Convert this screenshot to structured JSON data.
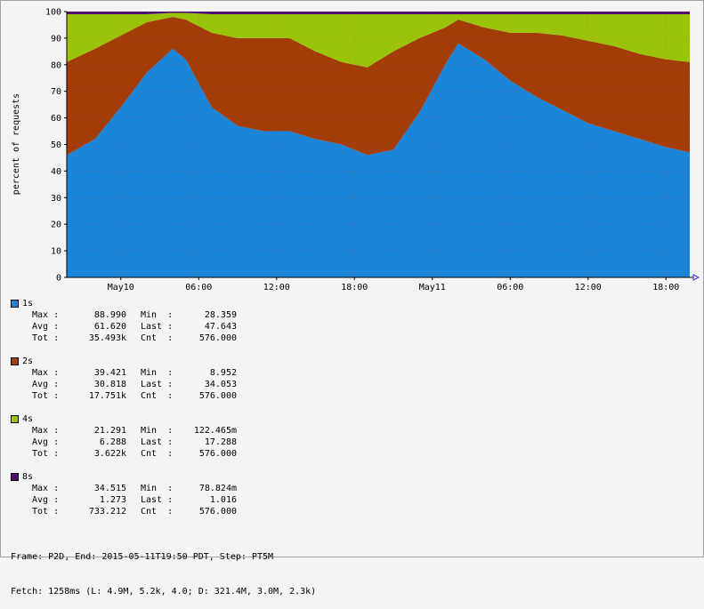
{
  "chart_data": {
    "type": "area",
    "stacked": true,
    "ylabel": "percent of requests",
    "ylim": [
      0,
      100
    ],
    "yticks": [
      0,
      10,
      20,
      30,
      40,
      50,
      60,
      70,
      80,
      90,
      100
    ],
    "xlim": [
      "2015-05-09T19:50",
      "2015-05-11T19:50"
    ],
    "xticks": [
      {
        "t": "2015-05-10T00:00",
        "label": "May10"
      },
      {
        "t": "2015-05-10T06:00",
        "label": "06:00"
      },
      {
        "t": "2015-05-10T12:00",
        "label": "12:00"
      },
      {
        "t": "2015-05-10T18:00",
        "label": "18:00"
      },
      {
        "t": "2015-05-11T00:00",
        "label": "May11"
      },
      {
        "t": "2015-05-11T06:00",
        "label": "06:00"
      },
      {
        "t": "2015-05-11T12:00",
        "label": "12:00"
      },
      {
        "t": "2015-05-11T18:00",
        "label": "18:00"
      }
    ],
    "grid": true,
    "x": [
      "2015-05-09T19:50",
      "2015-05-09T22:00",
      "2015-05-10T00:00",
      "2015-05-10T02:00",
      "2015-05-10T04:00",
      "2015-05-10T05:00",
      "2015-05-10T07:00",
      "2015-05-10T09:00",
      "2015-05-10T11:00",
      "2015-05-10T13:00",
      "2015-05-10T15:00",
      "2015-05-10T17:00",
      "2015-05-10T19:00",
      "2015-05-10T21:00",
      "2015-05-10T23:00",
      "2015-05-11T01:00",
      "2015-05-11T02:00",
      "2015-05-11T04:00",
      "2015-05-11T06:00",
      "2015-05-11T08:00",
      "2015-05-11T10:00",
      "2015-05-11T12:00",
      "2015-05-11T14:00",
      "2015-05-11T16:00",
      "2015-05-11T18:00",
      "2015-05-11T19:50"
    ],
    "series": [
      {
        "name": "1s",
        "color": "#1a84d8",
        "values": [
          46,
          52,
          64,
          77,
          86,
          82,
          64,
          57,
          55,
          55,
          52,
          50,
          46,
          48,
          62,
          80,
          88,
          82,
          74,
          68,
          63,
          58,
          55,
          52,
          49,
          47
        ]
      },
      {
        "name": "2s",
        "color": "#a23d08",
        "values": [
          35,
          34,
          27,
          19,
          12,
          15,
          28,
          33,
          35,
          35,
          33,
          31,
          33,
          37,
          28,
          14,
          9,
          12,
          18,
          24,
          28,
          31,
          32,
          32,
          33,
          34
        ]
      },
      {
        "name": "4s",
        "color": "#9ac40a",
        "values": [
          18,
          13,
          8,
          3,
          1.5,
          2.5,
          7,
          9,
          9,
          9,
          14,
          18,
          20,
          14,
          9,
          5,
          2,
          5,
          7,
          7,
          8,
          10,
          12,
          15,
          17,
          18
        ]
      },
      {
        "name": "8s",
        "color": "#4d0e6e",
        "values": [
          1,
          1,
          1,
          1,
          0.5,
          0.5,
          1,
          1,
          1,
          1,
          1,
          1,
          1,
          1,
          1,
          1,
          1,
          1,
          1,
          1,
          1,
          1,
          1,
          1,
          1,
          1
        ]
      }
    ]
  },
  "legend": [
    {
      "name": "1s",
      "color": "#1a84d8",
      "max": "88.990",
      "min": "28.359",
      "avg": "61.620",
      "last": "47.643",
      "tot": "35.493k",
      "cnt": "576.000"
    },
    {
      "name": "2s",
      "color": "#a23d08",
      "max": "39.421",
      "min": "8.952",
      "avg": "30.818",
      "last": "34.053",
      "tot": "17.751k",
      "cnt": "576.000"
    },
    {
      "name": "4s",
      "color": "#9ac40a",
      "max": "21.291",
      "min": "122.465m",
      "avg": "6.288",
      "last": "17.288",
      "tot": "3.622k",
      "cnt": "576.000"
    },
    {
      "name": "8s",
      "color": "#4d0e6e",
      "max": "34.515",
      "min": "78.824m",
      "avg": "1.273",
      "last": "1.016",
      "tot": "733.212",
      "cnt": "576.000"
    }
  ],
  "stat_labels": {
    "max": "Max :",
    "min": "Min  :",
    "avg": "Avg :",
    "last": "Last :",
    "tot": "Tot :",
    "cnt": "Cnt  :"
  },
  "footer": {
    "line1": "Frame: P2D, End: 2015-05-11T19:50 PDT, Step: PT5M",
    "line2": "Fetch: 1258ms (L: 4.9M, 5.2k, 4.0; D: 321.4M, 3.0M, 2.3k)"
  }
}
